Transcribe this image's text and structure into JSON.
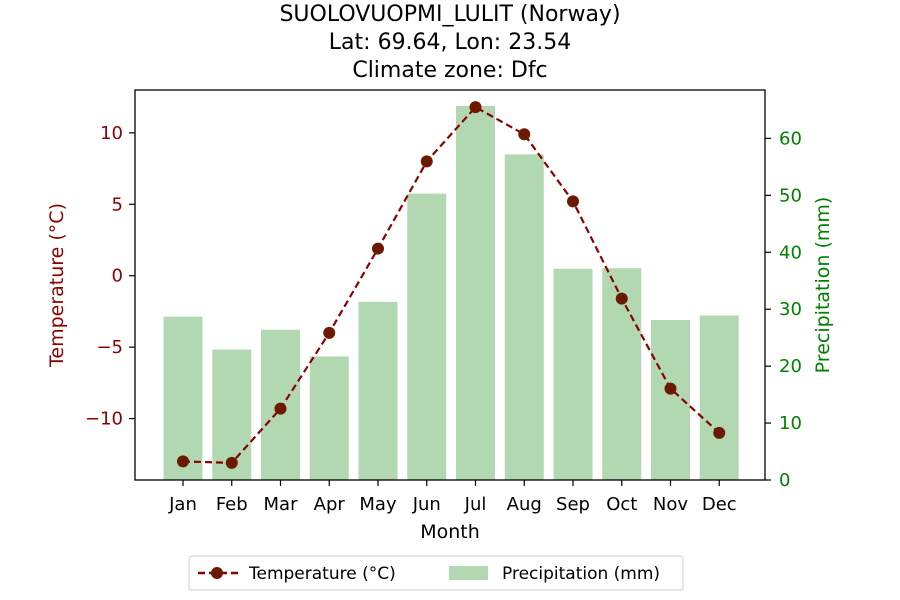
{
  "chart_data": {
    "type": "bar+line",
    "title_lines": [
      "SUOLOVUOPMI_LULIT (Norway)",
      "Lat: 69.64, Lon: 23.54",
      "Climate zone: Dfc"
    ],
    "categories": [
      "Jan",
      "Feb",
      "Mar",
      "Apr",
      "May",
      "Jun",
      "Jul",
      "Aug",
      "Sep",
      "Oct",
      "Nov",
      "Dec"
    ],
    "xlabel": "Month",
    "ylabel_left": "Temperature (°C)",
    "ylabel_right": "Precipitation (mm)",
    "ylim_left": [
      -14.3,
      13.0
    ],
    "ylim_right": [
      0,
      68.5
    ],
    "yticks_left": [
      -10,
      -5,
      0,
      5,
      10
    ],
    "yticks_left_labels": [
      "−10",
      "−5",
      "0",
      "5",
      "10"
    ],
    "yticks_right": [
      0,
      10,
      20,
      30,
      40,
      50,
      60
    ],
    "yticks_right_labels": [
      "0",
      "10",
      "20",
      "30",
      "40",
      "50",
      "60"
    ],
    "series": [
      {
        "name": "Temperature (°C)",
        "type": "line",
        "axis": "left",
        "color": "#8b0000",
        "marker_color": "#6b1a00",
        "values": [
          -13.0,
          -13.1,
          -9.3,
          -4.0,
          1.9,
          8.0,
          11.8,
          9.9,
          5.2,
          -1.6,
          -7.9,
          -11.0
        ]
      },
      {
        "name": "Precipitation (mm)",
        "type": "bar",
        "axis": "right",
        "color": "#b2d8b2",
        "values": [
          28.7,
          22.9,
          26.4,
          21.7,
          31.3,
          50.3,
          65.7,
          57.2,
          37.1,
          37.2,
          28.1,
          28.9
        ]
      }
    ],
    "left_axis_color": "#8b0000",
    "right_axis_color": "#008000",
    "legend_position": "bottom-center"
  }
}
